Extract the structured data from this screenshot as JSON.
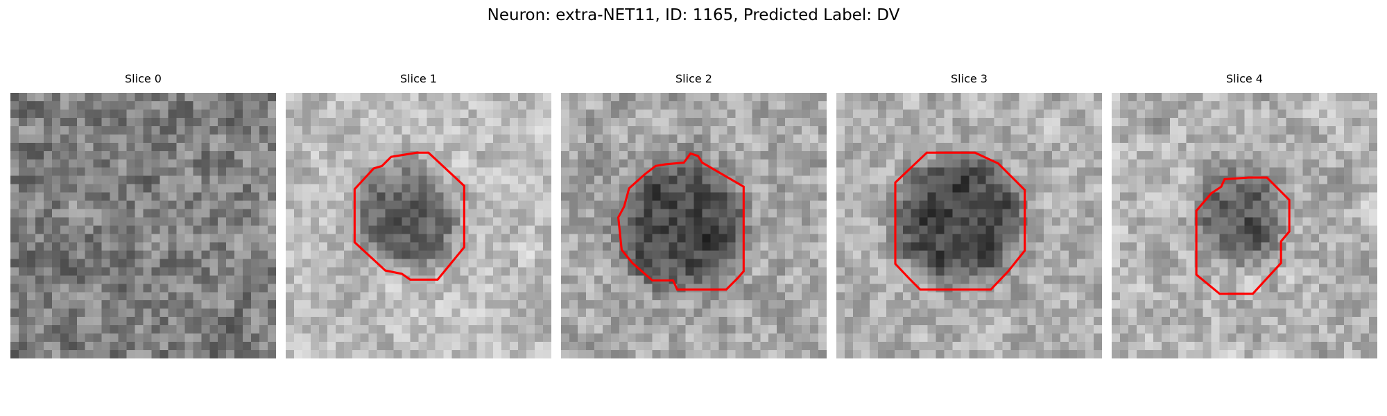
{
  "figure": {
    "title": "Neuron: extra-NET11, ID: 1165, Predicted Label: DV"
  },
  "colors": {
    "contour": "#ff0000",
    "background": "#ffffff"
  },
  "panels": [
    {
      "title": "Slice 0",
      "has_contour": false
    },
    {
      "title": "Slice 1",
      "has_contour": true
    },
    {
      "title": "Slice 2",
      "has_contour": true
    },
    {
      "title": "Slice 3",
      "has_contour": true
    },
    {
      "title": "Slice 4",
      "has_contour": true
    }
  ]
}
